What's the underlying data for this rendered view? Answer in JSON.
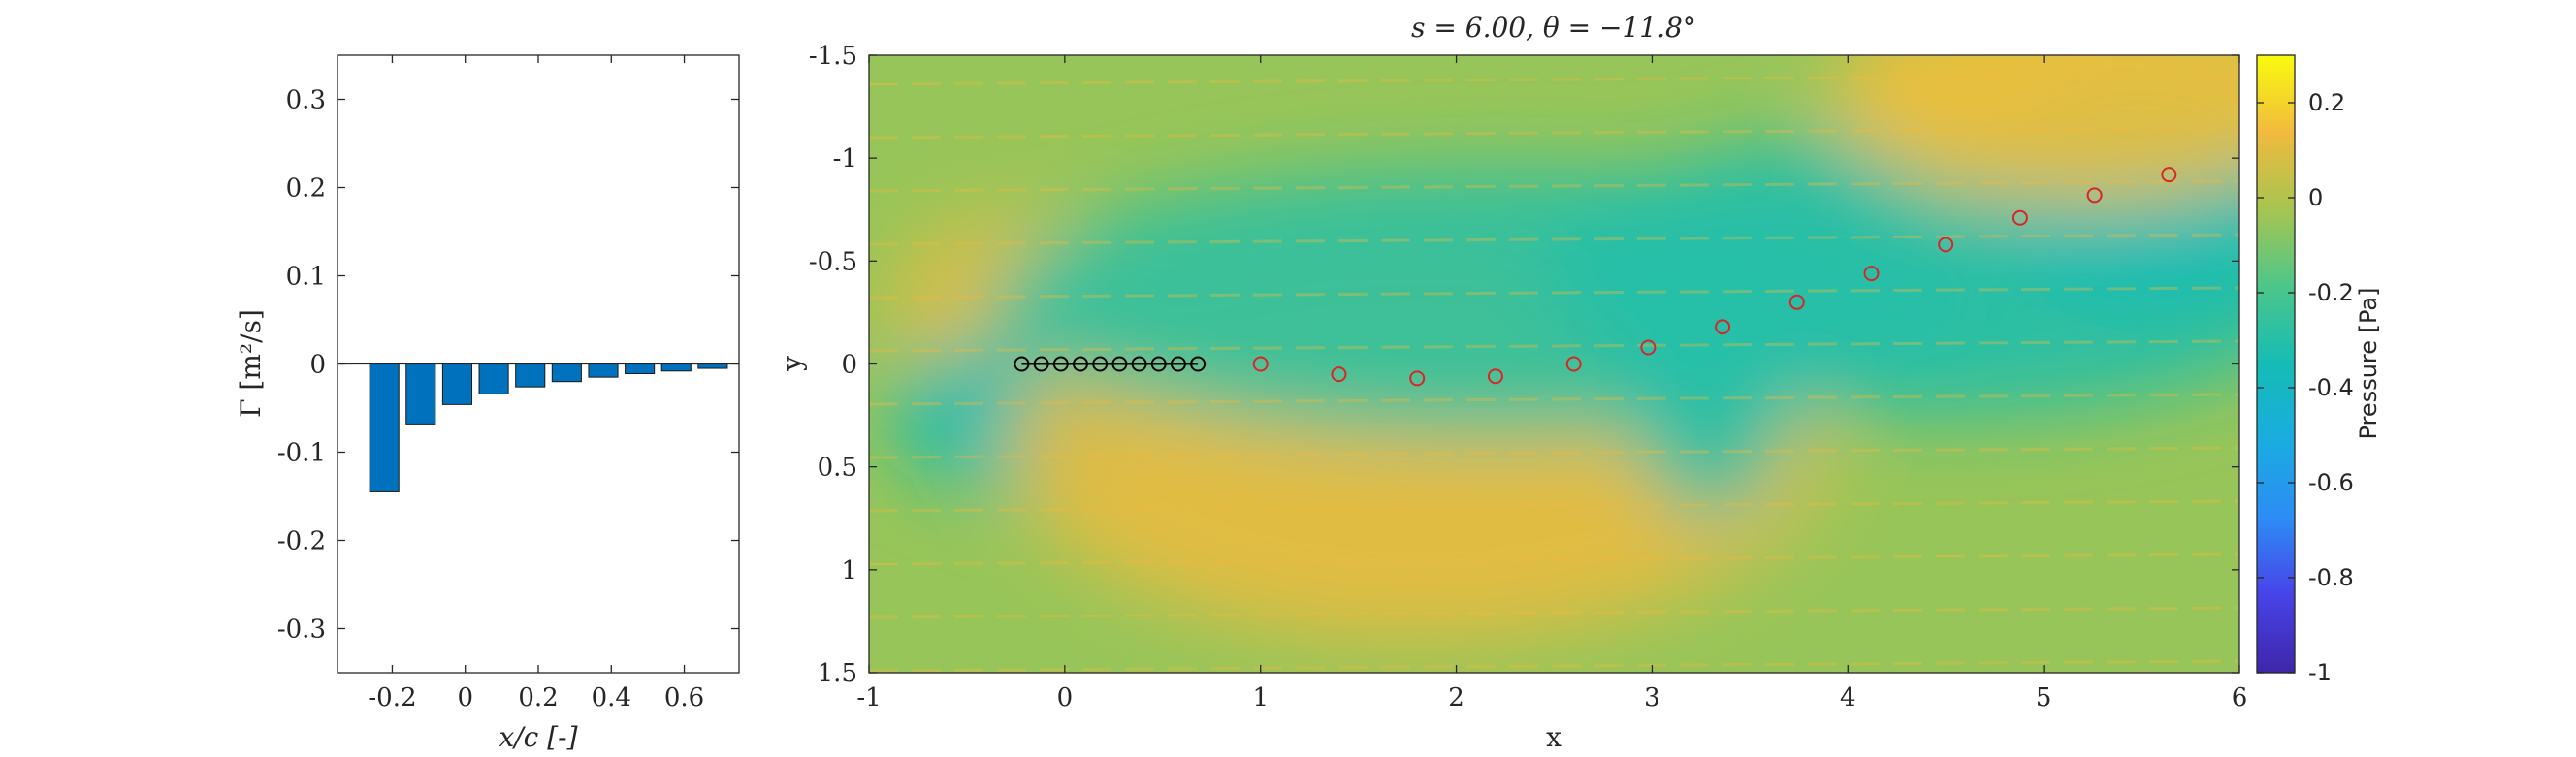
{
  "chart_data": [
    {
      "type": "bar",
      "xlabel": "x/c [-]",
      "ylabel": "Γ [m²/s]",
      "xlim": [
        -0.35,
        0.75
      ],
      "ylim": [
        -0.35,
        0.35
      ],
      "x_ticks": [
        -0.2,
        0,
        0.2,
        0.4,
        0.6
      ],
      "y_ticks": [
        -0.3,
        -0.2,
        -0.1,
        0,
        0.1,
        0.2,
        0.3
      ],
      "bar_color": "#0072BD",
      "x": [
        -0.222,
        -0.122,
        -0.022,
        0.078,
        0.178,
        0.278,
        0.378,
        0.478,
        0.578,
        0.678
      ],
      "values": [
        -0.145,
        -0.068,
        -0.046,
        -0.034,
        -0.026,
        -0.02,
        -0.015,
        -0.011,
        -0.008,
        -0.005
      ]
    },
    {
      "type": "heatmap",
      "title": "s = 6.00, θ = −11.8°",
      "xlabel": "x",
      "ylabel": "y",
      "xlim": [
        -1,
        6
      ],
      "ylim": [
        -1.5,
        1.5
      ],
      "y_reversed": true,
      "x_ticks": [
        -1,
        0,
        1,
        2,
        3,
        4,
        5,
        6
      ],
      "y_ticks": [
        -1.5,
        -1,
        -0.5,
        0,
        0.5,
        1,
        1.5
      ],
      "colorbar": {
        "label": "Pressure [Pa]",
        "range": [
          -1,
          0.3
        ],
        "ticks": [
          0.2,
          0,
          -0.2,
          -0.4,
          -0.6,
          -0.8,
          -1
        ],
        "colormap": "parula"
      },
      "field_description_values": {
        "ambient": -0.05,
        "sources": [
          {
            "x": -0.25,
            "y": -0.3,
            "value": 0.1
          },
          {
            "x": -0.3,
            "y": 0.25,
            "value": -0.35
          },
          {
            "x": 1.8,
            "y": 0.4,
            "value": 0.12
          },
          {
            "x": 2.2,
            "y": -0.3,
            "value": -0.28
          },
          {
            "x": 3.3,
            "y": 0.0,
            "value": -0.3
          },
          {
            "x": 4.5,
            "y": -0.45,
            "value": -0.3
          },
          {
            "x": 5.5,
            "y": -0.85,
            "value": -0.35
          },
          {
            "x": 5.2,
            "y": -1.3,
            "value": 0.15
          }
        ]
      },
      "vortices": {
        "plate": {
          "x": [
            -0.22,
            -0.12,
            -0.02,
            0.08,
            0.18,
            0.28,
            0.38,
            0.48,
            0.58,
            0.68
          ],
          "y": [
            0,
            0,
            0,
            0,
            0,
            0,
            0,
            0,
            0,
            0
          ],
          "color": "#000000"
        },
        "wake": {
          "x": [
            1.0,
            1.4,
            1.8,
            2.2,
            2.6,
            2.98,
            3.36,
            3.74,
            4.12,
            4.5,
            4.88,
            5.26,
            5.64
          ],
          "y": [
            0.0,
            0.05,
            0.07,
            0.06,
            0.0,
            -0.08,
            -0.18,
            -0.3,
            -0.44,
            -0.58,
            -0.71,
            -0.82,
            -0.92
          ],
          "color": "#D62728"
        }
      }
    }
  ]
}
